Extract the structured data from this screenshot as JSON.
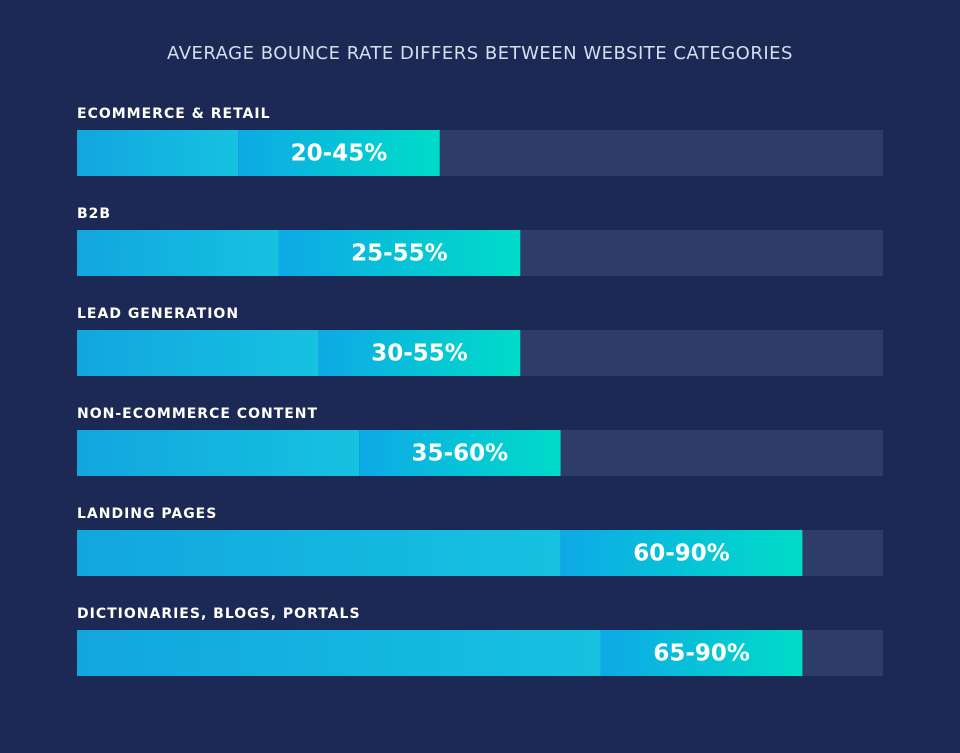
{
  "chart_data": {
    "type": "range-bar",
    "title": "AVERAGE BOUNCE RATE DIFFERS BETWEEN WEBSITE CATEGORIES",
    "categories": [
      "ECOMMERCE & RETAIL",
      "B2B",
      "LEAD GENERATION",
      "NON-ECOMMERCE CONTENT",
      "LANDING PAGES",
      "DICTIONARIES, BLOGS, PORTALS"
    ],
    "values": [
      [
        20,
        45
      ],
      [
        25,
        55
      ],
      [
        30,
        55
      ],
      [
        35,
        60
      ],
      [
        60,
        90
      ],
      [
        65,
        90
      ]
    ],
    "value_labels": [
      "20-45%",
      "25-55%",
      "30-55%",
      "35-60%",
      "60-90%",
      "65-90%"
    ],
    "xlim": [
      0,
      100
    ]
  }
}
